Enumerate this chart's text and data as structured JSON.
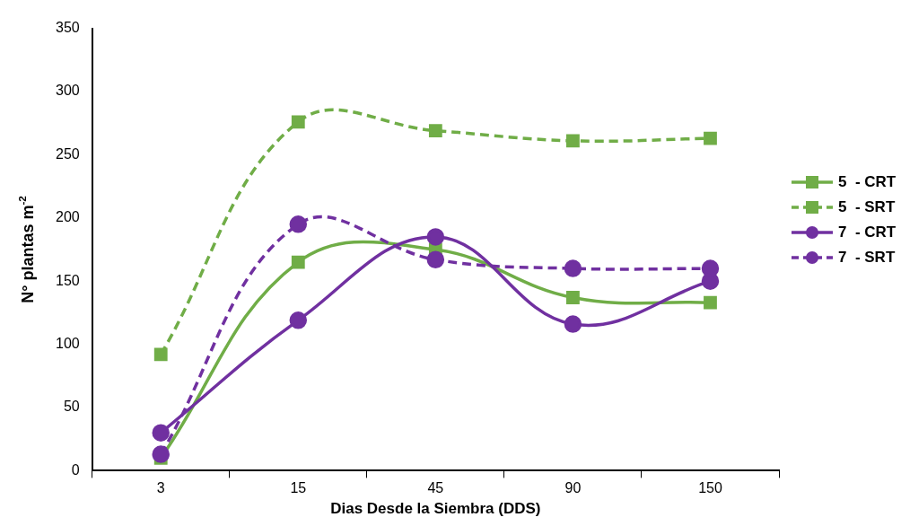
{
  "chart_data": {
    "type": "line",
    "xlabel": "Dias Desde la Siembra (DDS)",
    "ylabel": "N° plantas m$^{-2}$",
    "categories": [
      "3",
      "15",
      "45",
      "90",
      "150"
    ],
    "ylim": [
      0,
      350
    ],
    "yticks": [
      0,
      50,
      100,
      150,
      200,
      250,
      300,
      350
    ],
    "grid": false,
    "legend": "right",
    "series": [
      {
        "name": "5  - CRT",
        "color": "#70ad47",
        "marker": "square",
        "line_style": "solid",
        "values": [
          10,
          165,
          175,
          137,
          133
        ]
      },
      {
        "name": "5  - SRT",
        "color": "#70ad47",
        "marker": "square",
        "line_style": "dashed",
        "values": [
          92,
          276,
          269,
          261,
          263
        ]
      },
      {
        "name": "7  - CRT",
        "color": "#7030a0",
        "marker": "circle",
        "line_style": "solid",
        "values": [
          30,
          119,
          185,
          116,
          150
        ]
      },
      {
        "name": "7  - SRT",
        "color": "#7030a0",
        "marker": "circle",
        "line_style": "dashed",
        "values": [
          13,
          195,
          167,
          160,
          160
        ]
      }
    ]
  }
}
